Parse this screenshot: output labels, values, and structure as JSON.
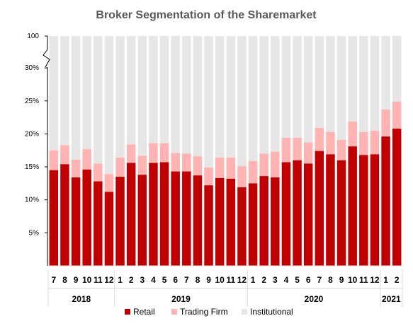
{
  "chart_data": {
    "type": "bar",
    "stacked": true,
    "title": "Broker Segmentation of the Sharemarket",
    "xlabel": "",
    "ylabel": "",
    "y_ticks": [
      "5%",
      "10%",
      "15%",
      "20%",
      "25%",
      "30%",
      "100"
    ],
    "y_scale_note": "broken axis: 0-30% linear, break, top = 100",
    "ylim": [
      0,
      100
    ],
    "categories": [
      "7",
      "8",
      "9",
      "10",
      "11",
      "12",
      "1",
      "2",
      "3",
      "4",
      "5",
      "6",
      "7",
      "8",
      "9",
      "10",
      "11",
      "12",
      "1",
      "2",
      "3",
      "4",
      "5",
      "6",
      "7",
      "8",
      "9",
      "10",
      "11",
      "12",
      "1",
      "2"
    ],
    "year_groups": [
      {
        "label": "2018",
        "count": 6
      },
      {
        "label": "2019",
        "count": 12
      },
      {
        "label": "2020",
        "count": 12
      },
      {
        "label": "2021",
        "count": 2
      }
    ],
    "series": [
      {
        "name": "Retail",
        "color": "#c00000",
        "values": [
          14.5,
          15.4,
          13.4,
          14.6,
          12.8,
          11.2,
          13.5,
          15.6,
          13.8,
          15.6,
          15.7,
          14.3,
          14.3,
          13.7,
          12.2,
          13.3,
          13.2,
          11.9,
          12.5,
          13.6,
          13.4,
          15.7,
          16.0,
          15.5,
          17.4,
          16.9,
          16.0,
          18.1,
          16.8,
          16.9,
          19.6,
          20.8
        ]
      },
      {
        "name": "Trading Firm",
        "color": "#ffb3b3",
        "values": [
          3.0,
          2.9,
          2.7,
          3.1,
          2.7,
          2.7,
          2.9,
          2.8,
          2.9,
          3.0,
          2.9,
          2.8,
          2.7,
          2.9,
          2.7,
          3.1,
          3.2,
          3.2,
          3.4,
          3.4,
          3.9,
          3.7,
          3.4,
          3.2,
          3.5,
          3.4,
          3.1,
          3.8,
          3.5,
          3.6,
          4.1,
          4.1
        ]
      },
      {
        "name": "Institutional",
        "color": "#e6e6e6",
        "values": [
          82.5,
          81.7,
          83.9,
          82.3,
          84.5,
          86.1,
          83.6,
          81.6,
          83.3,
          81.4,
          81.4,
          82.9,
          83.0,
          83.4,
          85.1,
          83.6,
          83.6,
          84.9,
          84.1,
          83.0,
          82.7,
          80.6,
          80.6,
          81.3,
          79.1,
          79.7,
          80.9,
          78.1,
          79.7,
          79.5,
          76.3,
          75.1
        ]
      }
    ],
    "legend_position": "bottom",
    "grid": false
  }
}
